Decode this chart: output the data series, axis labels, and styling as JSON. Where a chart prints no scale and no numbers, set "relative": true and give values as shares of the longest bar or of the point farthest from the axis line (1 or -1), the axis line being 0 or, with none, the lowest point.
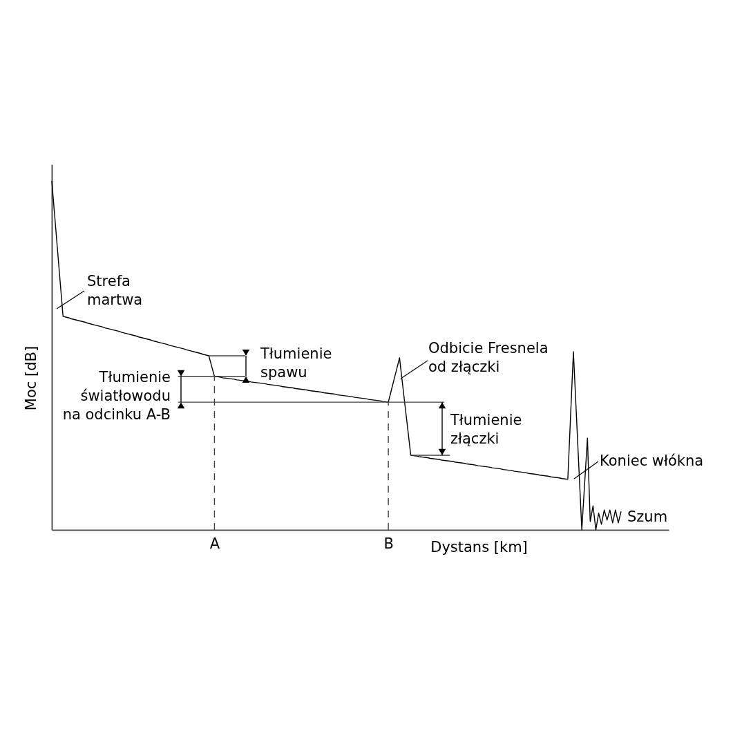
{
  "chart_data": {
    "type": "line",
    "xlabel": "Dystans [km]",
    "ylabel": "Moc [dB]",
    "relative": true,
    "categories": [
      null,
      null,
      null,
      null,
      null,
      null,
      null,
      null,
      null,
      null,
      null,
      null,
      null,
      null,
      null,
      null,
      null,
      null,
      null,
      null,
      null,
      null,
      null,
      null,
      null,
      null,
      null,
      null,
      null,
      null,
      null,
      null,
      null,
      null,
      null,
      null,
      null,
      null,
      null,
      null,
      null,
      null,
      null,
      null,
      null,
      null,
      null,
      null,
      null,
      null,
      null,
      null,
      null,
      null,
      null,
      null,
      null,
      null,
      "A",
      null,
      null,
      null,
      null,
      null,
      null,
      null,
      null,
      null,
      null,
      null,
      null,
      null,
      null,
      null,
      null,
      null,
      null,
      null,
      null,
      null,
      null,
      null,
      null,
      null,
      null,
      null,
      null,
      null,
      null,
      null,
      null,
      null,
      null,
      null,
      null,
      null,
      null,
      null,
      null,
      null,
      null,
      null,
      null,
      null,
      null,
      null,
      null,
      null,
      null,
      null,
      null,
      null,
      null,
      null,
      null,
      null,
      null,
      null,
      null,
      null,
      "B",
      null,
      null,
      null,
      null,
      null,
      null,
      null,
      null,
      null,
      null,
      null,
      null,
      null,
      null,
      null,
      null,
      null,
      null,
      null,
      null,
      null,
      null,
      null,
      null,
      null,
      null,
      null,
      null,
      null,
      null,
      null,
      null,
      null,
      null,
      null,
      null,
      null,
      null,
      null,
      null,
      null,
      null,
      null,
      null,
      null,
      null,
      null,
      null,
      null,
      null,
      null,
      null,
      null,
      null,
      null,
      null,
      null,
      null,
      null,
      null,
      null,
      null,
      null,
      null,
      null,
      null,
      null,
      null,
      null,
      null,
      null,
      null,
      null,
      null,
      null,
      null,
      null,
      null,
      null,
      null,
      null,
      null,
      null,
      null,
      null,
      null,
      null,
      null,
      null,
      null,
      null,
      null,
      null,
      null,
      null,
      null,
      null,
      null,
      null,
      null
    ],
    "series": [
      {
        "color": "#000000",
        "values": [
          1,
          0.903,
          0.806,
          0.709,
          0.612,
          0.61,
          0.608,
          0.605,
          0.603,
          0.601,
          0.599,
          0.597,
          0.595,
          0.592,
          0.59,
          0.588,
          0.586,
          0.584,
          0.582,
          0.579,
          0.577,
          0.575,
          0.573,
          0.571,
          0.569,
          0.566,
          0.564,
          0.562,
          0.56,
          0.558,
          0.556,
          0.553,
          0.551,
          0.549,
          0.547,
          0.545,
          0.542,
          0.54,
          0.538,
          0.536,
          0.534,
          0.532,
          0.529,
          0.527,
          0.525,
          0.523,
          0.521,
          0.519,
          0.516,
          0.514,
          0.512,
          0.51,
          0.508,
          0.506,
          0.503,
          0.501,
          0.499,
          0.469,
          0.44,
          0.439,
          0.438,
          0.436,
          0.435,
          0.434,
          0.433,
          0.432,
          0.43,
          0.429,
          0.428,
          0.427,
          0.426,
          0.424,
          0.423,
          0.422,
          0.421,
          0.42,
          0.419,
          0.417,
          0.416,
          0.415,
          0.414,
          0.413,
          0.411,
          0.41,
          0.409,
          0.408,
          0.407,
          0.405,
          0.404,
          0.403,
          0.402,
          0.401,
          0.399,
          0.398,
          0.397,
          0.396,
          0.395,
          0.393,
          0.392,
          0.391,
          0.39,
          0.389,
          0.387,
          0.386,
          0.385,
          0.384,
          0.383,
          0.382,
          0.38,
          0.379,
          0.378,
          0.377,
          0.376,
          0.374,
          0.373,
          0.372,
          0.371,
          0.37,
          0.368,
          0.367,
          0.366,
          0.398,
          0.43,
          0.461,
          0.493,
          0.423,
          0.353,
          0.284,
          0.214,
          0.213,
          0.212,
          0.21,
          0.209,
          0.208,
          0.207,
          0.205,
          0.204,
          0.203,
          0.202,
          0.2,
          0.199,
          0.198,
          0.197,
          0.196,
          0.194,
          0.193,
          0.192,
          0.191,
          0.189,
          0.188,
          0.187,
          0.186,
          0.184,
          0.183,
          0.182,
          0.181,
          0.18,
          0.178,
          0.177,
          0.176,
          0.175,
          0.173,
          0.172,
          0.171,
          0.17,
          0.168,
          0.167,
          0.166,
          0.165,
          0.164,
          0.162,
          0.161,
          0.16,
          0.159,
          0.157,
          0.156,
          0.155,
          0.154,
          0.152,
          0.151,
          0.15,
          0.149,
          0.147,
          0.146,
          0.145,
          0.328,
          0.511,
          0.341,
          0.17,
          0,
          0.132,
          0.263,
          0.024,
          0.069,
          0,
          0.048,
          0.016,
          0.057,
          0.028,
          0.057,
          0.02,
          0.057,
          0.02,
          0.053,
          null,
          null,
          null,
          null,
          null,
          null,
          null,
          null,
          null,
          null,
          null,
          null,
          null,
          null,
          null,
          null,
          null
        ]
      },
      {
        "color": "#404040",
        "values": [
          null,
          null,
          null,
          null,
          null,
          null,
          null,
          null,
          null,
          null,
          null,
          null,
          null,
          null,
          null,
          null,
          null,
          null,
          null,
          null,
          null,
          null,
          null,
          null,
          null,
          null,
          null,
          null,
          null,
          null,
          null,
          null,
          null,
          null,
          null,
          null,
          null,
          null,
          null,
          null,
          null,
          null,
          null,
          null,
          null,
          null,
          null,
          null,
          null,
          null,
          null,
          null,
          null,
          null,
          null,
          null,
          0.499,
          0.499,
          0.499,
          0.499,
          0.499,
          0.499,
          0.499,
          0.499,
          0.499,
          0.499,
          0.499,
          0.499,
          0.499,
          0.499,
          null,
          null,
          null,
          null,
          null,
          null,
          null,
          null,
          null,
          null,
          null,
          null,
          null,
          null,
          null,
          null,
          null,
          null,
          null,
          null,
          null,
          null,
          null,
          null,
          null,
          null,
          null,
          null,
          null,
          null,
          null,
          null,
          null,
          null,
          null,
          null,
          null,
          null,
          null,
          null,
          null,
          null,
          null,
          null,
          null,
          null,
          null,
          null,
          null,
          null,
          null,
          null,
          null,
          null,
          null,
          null,
          null,
          null,
          null,
          null,
          null,
          null,
          null,
          null,
          null,
          null,
          null,
          null,
          null,
          null,
          null,
          null,
          null,
          null,
          null,
          null,
          null,
          null,
          null,
          null,
          null,
          null,
          null,
          null,
          null,
          null,
          null,
          null,
          null,
          null,
          null,
          null,
          null,
          null,
          null,
          null,
          null,
          null,
          null,
          null,
          null,
          null,
          null,
          null,
          null,
          null,
          null,
          null,
          null,
          null,
          null,
          null,
          null,
          null,
          null,
          null,
          null,
          null,
          null,
          null,
          null,
          null,
          null,
          null,
          null,
          null,
          null,
          null,
          null,
          null,
          null,
          null,
          null,
          null,
          null,
          null,
          null,
          null,
          null,
          null,
          null,
          null,
          null,
          null,
          null,
          null,
          null,
          null,
          null,
          null,
          null
        ]
      },
      {
        "color": "#404040",
        "values": [
          null,
          null,
          null,
          null,
          null,
          null,
          null,
          null,
          null,
          null,
          null,
          null,
          null,
          null,
          null,
          null,
          null,
          null,
          null,
          null,
          null,
          null,
          null,
          null,
          null,
          null,
          null,
          null,
          null,
          null,
          null,
          null,
          null,
          null,
          null,
          null,
          null,
          null,
          null,
          null,
          null,
          null,
          null,
          null,
          null,
          0.44,
          0.44,
          0.44,
          0.44,
          0.44,
          0.44,
          0.44,
          0.44,
          0.44,
          0.44,
          0.44,
          0.44,
          0.44,
          0.44,
          0.44,
          0.44,
          0.44,
          0.44,
          0.44,
          0.44,
          0.44,
          0.44,
          0.44,
          0.44,
          0.44,
          null,
          null,
          null,
          null,
          null,
          null,
          null,
          null,
          null,
          null,
          null,
          null,
          null,
          null,
          null,
          null,
          null,
          null,
          null,
          null,
          null,
          null,
          null,
          null,
          null,
          null,
          null,
          null,
          null,
          null,
          null,
          null,
          null,
          null,
          null,
          null,
          null,
          null,
          null,
          null,
          null,
          null,
          null,
          null,
          null,
          null,
          null,
          null,
          null,
          null,
          null,
          null,
          null,
          null,
          null,
          null,
          null,
          null,
          null,
          null,
          null,
          null,
          null,
          null,
          null,
          null,
          null,
          null,
          null,
          null,
          null,
          null,
          null,
          null,
          null,
          null,
          null,
          null,
          null,
          null,
          null,
          null,
          null,
          null,
          null,
          null,
          null,
          null,
          null,
          null,
          null,
          null,
          null,
          null,
          null,
          null,
          null,
          null,
          null,
          null,
          null,
          null,
          null,
          null,
          null,
          null,
          null,
          null,
          null,
          null,
          null,
          null,
          null,
          null,
          null,
          null,
          null,
          null,
          null,
          null,
          null,
          null,
          null,
          null,
          null,
          null,
          null,
          null,
          null,
          null,
          null,
          null,
          null,
          null,
          null,
          null,
          null,
          null,
          null,
          null,
          null,
          null,
          null,
          null,
          null,
          null,
          null,
          null,
          null,
          null,
          null
        ]
      },
      {
        "color": "#404040",
        "values": [
          null,
          null,
          null,
          null,
          null,
          null,
          null,
          null,
          null,
          null,
          null,
          null,
          null,
          null,
          null,
          null,
          null,
          null,
          null,
          null,
          null,
          null,
          null,
          null,
          null,
          null,
          null,
          null,
          null,
          null,
          null,
          null,
          null,
          null,
          null,
          null,
          null,
          null,
          null,
          null,
          null,
          null,
          null,
          null,
          null,
          0.366,
          0.366,
          0.366,
          0.366,
          0.366,
          0.366,
          0.366,
          0.366,
          0.366,
          0.366,
          0.366,
          0.366,
          0.366,
          0.366,
          0.366,
          0.366,
          0.366,
          0.366,
          0.366,
          0.366,
          0.366,
          0.366,
          0.366,
          0.366,
          0.366,
          0.366,
          0.366,
          0.366,
          0.366,
          0.366,
          0.366,
          0.366,
          0.366,
          0.366,
          0.366,
          0.366,
          0.366,
          0.366,
          0.366,
          0.366,
          0.366,
          0.366,
          0.366,
          0.366,
          0.366,
          0.366,
          0.366,
          0.366,
          0.366,
          0.366,
          0.366,
          0.366,
          0.366,
          0.366,
          0.366,
          0.366,
          0.366,
          0.366,
          0.366,
          0.366,
          0.366,
          0.366,
          0.366,
          0.366,
          0.366,
          0.366,
          0.366,
          0.366,
          0.366,
          0.366,
          0.366,
          0.366,
          0.366,
          0.366,
          0.366,
          0.366,
          0.366,
          0.366,
          0.366,
          0.366,
          0.366,
          0.366,
          0.366,
          0.366,
          0.366,
          0.366,
          0.366,
          0.366,
          0.366,
          0.366,
          0.366,
          0.366,
          0.366,
          0.366,
          0.366,
          0.366,
          null,
          null,
          null,
          null,
          null,
          null,
          null,
          null,
          null,
          null,
          null,
          null,
          null,
          null,
          null,
          null,
          null,
          null,
          null,
          null,
          null,
          null,
          null,
          null,
          null,
          null,
          null,
          null,
          null,
          null,
          null,
          null,
          null,
          null,
          null,
          null,
          null,
          null,
          null,
          null,
          null,
          null,
          null,
          null,
          null,
          null,
          null,
          null,
          null,
          null,
          null,
          null,
          null,
          null,
          null,
          null,
          null,
          null,
          null,
          null,
          null,
          null,
          null,
          null,
          null,
          null,
          null,
          null,
          null,
          null,
          null,
          null,
          null,
          null,
          null,
          null,
          null,
          null,
          null,
          null
        ]
      },
      {
        "color": "#404040",
        "values": [
          null,
          null,
          null,
          null,
          null,
          null,
          null,
          null,
          null,
          null,
          null,
          null,
          null,
          null,
          null,
          null,
          null,
          null,
          null,
          null,
          null,
          null,
          null,
          null,
          null,
          null,
          null,
          null,
          null,
          null,
          null,
          null,
          null,
          null,
          null,
          null,
          null,
          null,
          null,
          null,
          null,
          null,
          null,
          null,
          null,
          null,
          null,
          null,
          null,
          null,
          null,
          null,
          null,
          null,
          null,
          null,
          null,
          null,
          null,
          null,
          null,
          null,
          null,
          null,
          null,
          null,
          null,
          null,
          null,
          null,
          null,
          null,
          null,
          null,
          null,
          null,
          null,
          null,
          null,
          null,
          null,
          null,
          null,
          null,
          null,
          null,
          null,
          null,
          null,
          null,
          null,
          null,
          null,
          null,
          null,
          null,
          null,
          null,
          null,
          null,
          null,
          null,
          null,
          null,
          null,
          null,
          null,
          null,
          null,
          null,
          null,
          null,
          null,
          null,
          null,
          null,
          null,
          null,
          null,
          null,
          null,
          null,
          null,
          null,
          null,
          null,
          null,
          null,
          0.214,
          0.214,
          0.214,
          0.214,
          0.214,
          0.214,
          0.214,
          0.214,
          0.214,
          0.214,
          0.214,
          0.214,
          0.214,
          0.214,
          0.214,
          null,
          null,
          null,
          null,
          null,
          null,
          null,
          null,
          null,
          null,
          null,
          null,
          null,
          null,
          null,
          null,
          null,
          null,
          null,
          null,
          null,
          null,
          null,
          null,
          null,
          null,
          null,
          null,
          null,
          null,
          null,
          null,
          null,
          null,
          null,
          null,
          null,
          null,
          null,
          null,
          null,
          null,
          null,
          null,
          null,
          null,
          null,
          null,
          null,
          null,
          null,
          null,
          null,
          null,
          null,
          null,
          null,
          null,
          null,
          null,
          null,
          null,
          null,
          null,
          null,
          null,
          null,
          null,
          null,
          null,
          null,
          null,
          null,
          null,
          null,
          null,
          null,
          null
        ]
      }
    ],
    "ref_lines": [
      {
        "axis": "x",
        "value": "A",
        "line_style": "dashed",
        "color": "#404040"
      },
      {
        "axis": "x",
        "value": "B",
        "line_style": "dashed",
        "color": "#404040"
      }
    ],
    "annotations": [
      "Strefa\nmartwa",
      "Odbicie Fresnela\nod złączki",
      "Koniec włókna",
      "Szum",
      "Tłumienie\nspawu",
      "Tłumienie\nświatłowodu\nna odcinku A-B",
      "Tłumienie\nzłączki"
    ]
  }
}
